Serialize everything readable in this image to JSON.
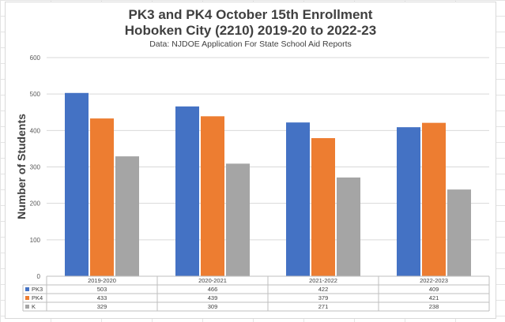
{
  "chart_data": {
    "type": "bar",
    "title": "PK3 and PK4 October 15th Enrollment",
    "title_line2": "Hoboken City (2210) 2019-20 to 2022-23",
    "subtitle": "Data: NJDOE Application For State School Aid Reports",
    "ylabel": "Number of Students",
    "xlabel": "",
    "categories": [
      "2019-2020",
      "2020-2021",
      "2021-2022",
      "2022-2023"
    ],
    "series": [
      {
        "name": "PK3",
        "values": [
          503,
          466,
          422,
          409
        ],
        "color": "#4472C4"
      },
      {
        "name": "PK4",
        "values": [
          433,
          439,
          379,
          421
        ],
        "color": "#ED7D31"
      },
      {
        "name": "K",
        "values": [
          329,
          309,
          271,
          238
        ],
        "color": "#A5A5A5"
      }
    ],
    "ylim": [
      0,
      600
    ],
    "yticks": [
      0,
      100,
      200,
      300,
      400,
      500,
      600
    ],
    "grid": true,
    "legend": "data-table"
  }
}
